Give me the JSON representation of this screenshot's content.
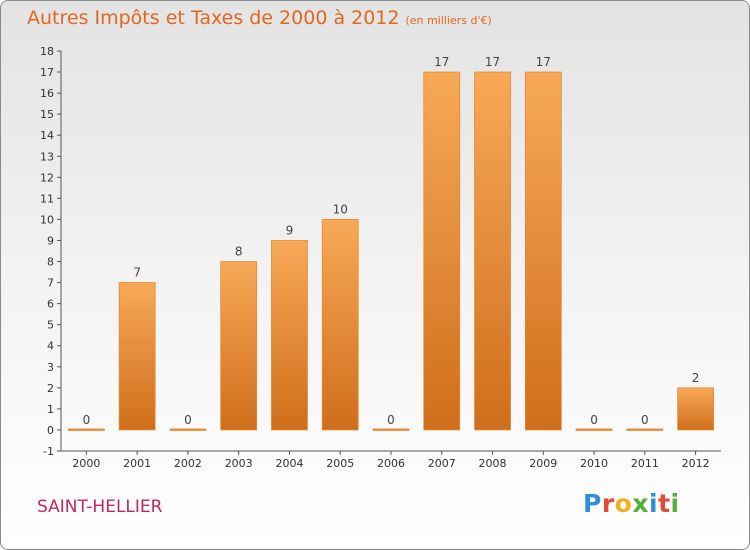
{
  "chart_data": {
    "type": "bar",
    "title": "Autres Impôts et Taxes de 2000 à 2012",
    "subtitle": "(en milliers d'€)",
    "categories": [
      "2000",
      "2001",
      "2002",
      "2003",
      "2004",
      "2005",
      "2006",
      "2007",
      "2008",
      "2009",
      "2010",
      "2011",
      "2012"
    ],
    "values": [
      0,
      7,
      0,
      8,
      9,
      10,
      0,
      17,
      17,
      17,
      0,
      0,
      2
    ],
    "ylim": [
      -1,
      18
    ],
    "yticks": [
      -1,
      0,
      1,
      2,
      3,
      4,
      5,
      6,
      7,
      8,
      9,
      10,
      11,
      12,
      13,
      14,
      15,
      16,
      17,
      18
    ],
    "grid": false,
    "bar_color": "#f09a45"
  },
  "place": "SAINT-HELLIER",
  "brand": {
    "letters": [
      "P",
      "r",
      "o",
      "x",
      "i",
      "t",
      "i"
    ],
    "colors": [
      "#2f8fd6",
      "#e24a3a",
      "#f2b21c",
      "#55b03a",
      "#2f8fd6",
      "#e24a3a",
      "#55b03a"
    ]
  }
}
